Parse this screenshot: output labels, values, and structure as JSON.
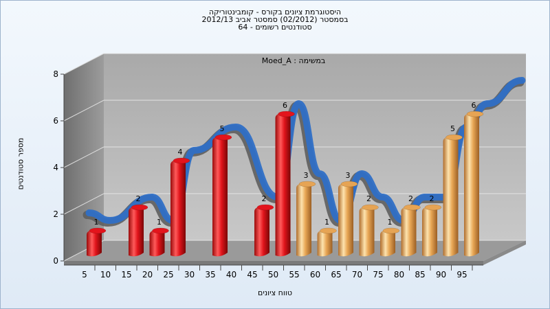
{
  "chart_data": {
    "type": "bar",
    "title": [
      "היסטוגרמת ציונים בקורס - קומבינטוריקה",
      "בסמסטר  (02/2012)  סמסטר אביב 2012/13",
      "סטודנטים רשומים - 64"
    ],
    "annotation": "במשימה : Moed_A",
    "xlabel": "טווח ציונים",
    "ylabel": "מספר סטודנטים",
    "ylim": [
      0,
      8
    ],
    "yticks": [
      "0",
      "2",
      "4",
      "6",
      "8"
    ],
    "xticks": [
      "5",
      "10",
      "15",
      "20",
      "25",
      "30",
      "35",
      "40",
      "45",
      "50",
      "55",
      "60",
      "65",
      "70",
      "75",
      "80",
      "85",
      "90",
      "95"
    ],
    "bars": [
      {
        "x": 5,
        "value": 1,
        "color": "red"
      },
      {
        "x": 15,
        "value": 2,
        "color": "red"
      },
      {
        "x": 20,
        "value": 1,
        "color": "red"
      },
      {
        "x": 25,
        "value": 4,
        "color": "red"
      },
      {
        "x": 35,
        "value": 5,
        "color": "red"
      },
      {
        "x": 45,
        "value": 2,
        "color": "red"
      },
      {
        "x": 50,
        "value": 6,
        "color": "red"
      },
      {
        "x": 55,
        "value": 3,
        "color": "gold"
      },
      {
        "x": 60,
        "value": 1,
        "color": "gold"
      },
      {
        "x": 65,
        "value": 3,
        "color": "gold"
      },
      {
        "x": 70,
        "value": 2,
        "color": "gold"
      },
      {
        "x": 75,
        "value": 1,
        "color": "gold"
      },
      {
        "x": 80,
        "value": 2,
        "color": "gold"
      },
      {
        "x": 85,
        "value": 2,
        "color": "gold"
      },
      {
        "x": 90,
        "value": 5,
        "color": "gold"
      },
      {
        "x": 95,
        "value": 6,
        "color": "gold"
      }
    ],
    "colors": {
      "red_light": "#ff6b6b",
      "red_mid": "#e3141c",
      "red_dark": "#8e0a0a",
      "gold_light": "#fde1a8",
      "gold_mid": "#e6a454",
      "gold_dark": "#a5662a",
      "ribbon_blue": "#2f6fc6",
      "ribbon_gray": "#5e5e5e",
      "wall_back": "#b4b4b4",
      "wall_left": "#8a8a8a",
      "floor": "#9a9a9a"
    }
  }
}
